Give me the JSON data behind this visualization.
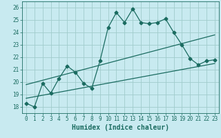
{
  "xlabel": "Humidex (Indice chaleur)",
  "bg_color": "#c8eaf0",
  "grid_color": "#a0cccc",
  "line_color": "#1a6b60",
  "xlim": [
    -0.5,
    23.5
  ],
  "ylim": [
    17.5,
    26.5
  ],
  "xticks": [
    0,
    1,
    2,
    3,
    4,
    5,
    6,
    7,
    8,
    9,
    10,
    11,
    12,
    13,
    14,
    15,
    16,
    17,
    18,
    19,
    20,
    21,
    22,
    23
  ],
  "yticks": [
    18,
    19,
    20,
    21,
    22,
    23,
    24,
    25,
    26
  ],
  "main_x": [
    0,
    1,
    2,
    3,
    4,
    5,
    6,
    7,
    8,
    9,
    10,
    11,
    12,
    13,
    14,
    15,
    16,
    17,
    18,
    19,
    20,
    21,
    22,
    23
  ],
  "main_y": [
    18.3,
    18.0,
    19.9,
    19.1,
    20.3,
    21.3,
    20.8,
    19.9,
    19.5,
    21.7,
    24.4,
    25.6,
    24.8,
    25.9,
    24.8,
    24.7,
    24.8,
    25.1,
    24.0,
    23.0,
    21.9,
    21.4,
    21.7,
    21.8
  ],
  "trend1_x": [
    0,
    23
  ],
  "trend1_y": [
    19.8,
    23.8
  ],
  "trend2_x": [
    0,
    23
  ],
  "trend2_y": [
    18.7,
    21.5
  ],
  "fontsize_label": 7,
  "fontsize_tick": 5.5
}
